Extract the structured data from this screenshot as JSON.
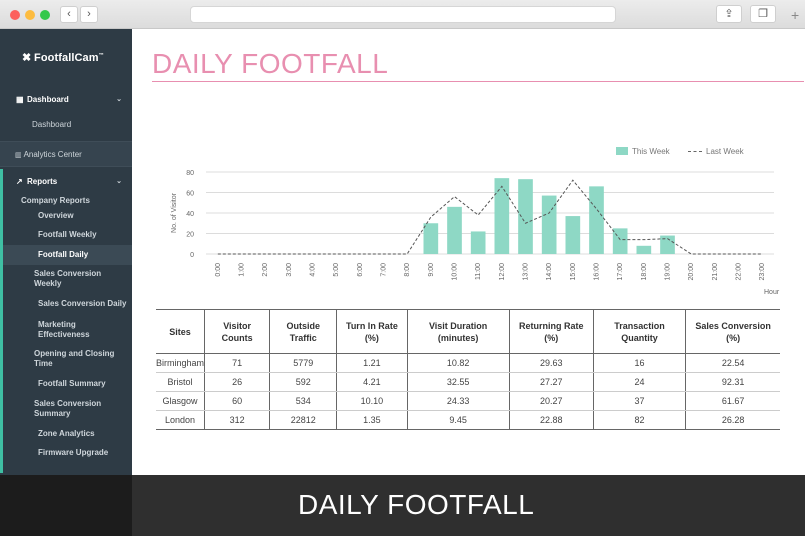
{
  "sidebar": {
    "logo": "FootfallCam",
    "logo_tm": "™",
    "dashboard_head": "Dashboard",
    "dashboard_sub": "Dashboard",
    "analytics": "Analytics Center",
    "reports_head": "Reports",
    "company_reports": "Company Reports",
    "items": [
      {
        "label": "Overview"
      },
      {
        "label": "Footfall Weekly"
      },
      {
        "label": "Footfall Daily"
      },
      {
        "label": "Sales Conversion Weekly"
      },
      {
        "label": "Sales Conversion Daily"
      },
      {
        "label": "Marketing Effectiveness"
      },
      {
        "label": "Opening and Closing Time"
      },
      {
        "label": "Footfall Summary"
      },
      {
        "label": "Sales Conversion Summary"
      },
      {
        "label": "Zone Analytics"
      },
      {
        "label": "Firmware Upgrade"
      }
    ]
  },
  "page": {
    "title": "DAILY FOOTFALL"
  },
  "chart_data": {
    "type": "bar",
    "ylabel": "No. of Visitor",
    "xlabel": "Hour",
    "ylim": [
      0,
      80
    ],
    "yticks": [
      0,
      20,
      40,
      60,
      80
    ],
    "categories": [
      "0:00",
      "1:00",
      "2:00",
      "3:00",
      "4:00",
      "5:00",
      "6:00",
      "7:00",
      "8:00",
      "9:00",
      "10:00",
      "11:00",
      "12:00",
      "13:00",
      "14:00",
      "15:00",
      "16:00",
      "17:00",
      "18:00",
      "19:00",
      "20:00",
      "21:00",
      "22:00",
      "23:00"
    ],
    "legend_position": "top-right",
    "series": [
      {
        "name": "This Week",
        "type": "bar",
        "color": "#8ed8c5",
        "values": [
          0,
          0,
          0,
          0,
          0,
          0,
          0,
          0,
          0,
          30,
          46,
          22,
          74,
          73,
          57,
          37,
          66,
          25,
          8,
          18,
          0,
          0,
          0,
          0
        ]
      },
      {
        "name": "Last Week",
        "type": "line",
        "color": "#555555",
        "values": [
          0,
          0,
          0,
          0,
          0,
          0,
          0,
          0,
          0,
          36,
          56,
          38,
          66,
          30,
          40,
          72,
          44,
          14,
          14,
          15,
          0,
          0,
          0,
          0
        ]
      }
    ]
  },
  "table": {
    "headers": [
      "Sites",
      "Visitor Counts",
      "Outside Traffic",
      "Turn In Rate (%)",
      "Visit Duration (minutes)",
      "Returning Rate (%)",
      "Transaction Quantity",
      "Sales Conversion (%)"
    ],
    "rows": [
      [
        "Birmingham",
        "71",
        "5779",
        "1.21",
        "10.82",
        "29.63",
        "16",
        "22.54"
      ],
      [
        "Bristol",
        "26",
        "592",
        "4.21",
        "32.55",
        "27.27",
        "24",
        "92.31"
      ],
      [
        "Glasgow",
        "60",
        "534",
        "10.10",
        "24.33",
        "20.27",
        "37",
        "61.67"
      ],
      [
        "London",
        "312",
        "22812",
        "1.35",
        "9.45",
        "22.88",
        "82",
        "26.28"
      ]
    ]
  },
  "caption": "DAILY FOOTFALL"
}
